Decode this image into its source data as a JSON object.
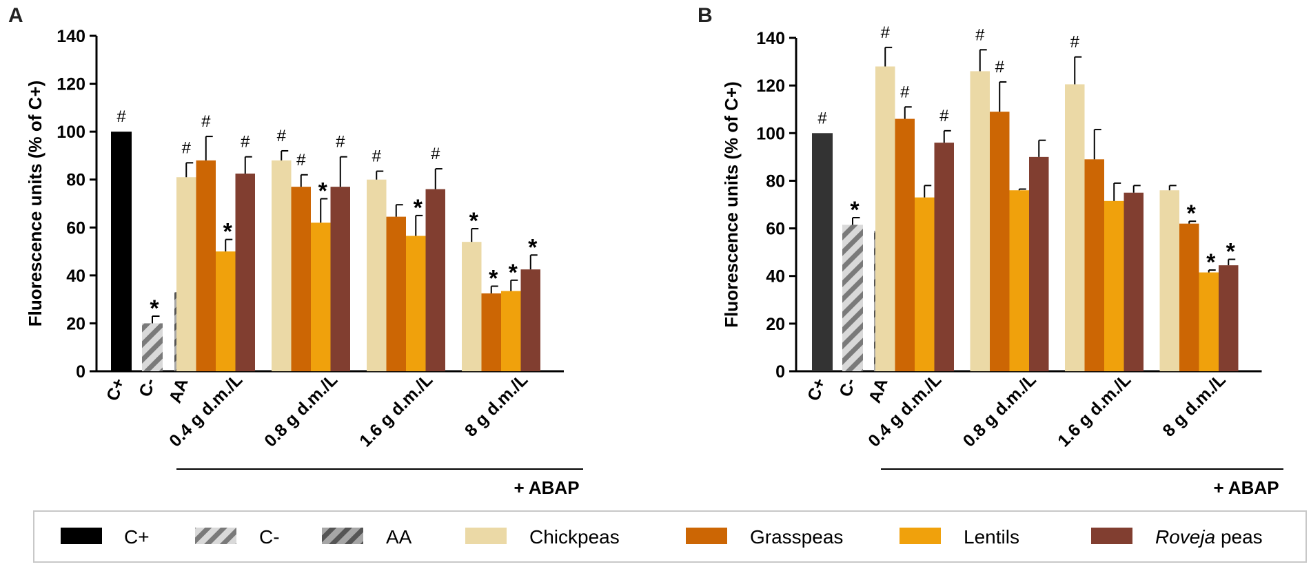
{
  "colors": {
    "c_plus_A": "#000000",
    "c_plus_B": "#333333",
    "chickpeas": "#ebd9a6",
    "grasspeas": "#cc6604",
    "lentils": "#f0a10c",
    "roveja": "#813e30",
    "c_minus_light": "#d9d9d9",
    "c_minus_stripe": "#7a7a7a",
    "aa_light": "#a6a6a6",
    "aa_stripe": "#555555"
  },
  "chart_data": [
    {
      "panel": "A",
      "type": "bar",
      "ylabel": "Fluorescence units (% of C+)",
      "ylim": [
        0,
        140
      ],
      "yticks": [
        "0",
        "20",
        "40",
        "60",
        "80",
        "100",
        "120",
        "140"
      ],
      "controls": [
        {
          "label": "C+",
          "value": 100,
          "err": 0,
          "mark": "#",
          "style": "solid"
        },
        {
          "label": "C-",
          "value": 20,
          "err": 3,
          "mark": "*",
          "style": "stripe-light"
        },
        {
          "label": "AA",
          "value": 33,
          "err": 3,
          "mark": "*",
          "style": "stripe-dark"
        }
      ],
      "groups": [
        {
          "label": "0.4 g d.m./L",
          "values": [
            81,
            88,
            50,
            82.5
          ],
          "errs": [
            6,
            10,
            5,
            7
          ],
          "marks": [
            "#",
            "#",
            "*",
            "#"
          ]
        },
        {
          "label": "0.8 g d.m./L",
          "values": [
            88,
            77,
            62,
            77
          ],
          "errs": [
            4,
            5,
            10,
            12.5
          ],
          "marks": [
            "#",
            "#",
            "*",
            "#"
          ]
        },
        {
          "label": "1.6 g d.m./L",
          "values": [
            80,
            64.5,
            56.5,
            76
          ],
          "errs": [
            3.5,
            5,
            8.5,
            8.5
          ],
          "marks": [
            "#",
            "",
            "*",
            "#"
          ]
        },
        {
          "label": "8 g d.m./L",
          "values": [
            54,
            32.5,
            33.5,
            42.5
          ],
          "errs": [
            5.5,
            3,
            4.5,
            6
          ],
          "marks": [
            "*",
            "*",
            "*",
            "*"
          ]
        }
      ],
      "bracket_label": "+ ABAP"
    },
    {
      "panel": "B",
      "type": "bar",
      "ylabel": "Fluorescence units (% of C+)",
      "ylim": [
        0,
        140
      ],
      "yticks": [
        "0",
        "20",
        "40",
        "60",
        "80",
        "100",
        "120",
        "140"
      ],
      "controls": [
        {
          "label": "C+",
          "value": 100,
          "err": 0,
          "mark": "#",
          "style": "solid"
        },
        {
          "label": "C-",
          "value": 61.5,
          "err": 3,
          "mark": "*",
          "style": "stripe-light"
        },
        {
          "label": "AA",
          "value": 59,
          "err": 5,
          "mark": "*",
          "style": "stripe-dark"
        }
      ],
      "groups": [
        {
          "label": "0.4 g d.m./L",
          "values": [
            128,
            106,
            73,
            96
          ],
          "errs": [
            8,
            5,
            5,
            5
          ],
          "marks": [
            "#",
            "#",
            "",
            "#"
          ]
        },
        {
          "label": "0.8 g d.m./L",
          "values": [
            126,
            109,
            76,
            90
          ],
          "errs": [
            9,
            12.5,
            0.5,
            7
          ],
          "marks": [
            "#",
            "#",
            "",
            ""
          ]
        },
        {
          "label": "1.6 g d.m./L",
          "values": [
            120.5,
            89,
            71.5,
            75
          ],
          "errs": [
            11.5,
            12.5,
            7.5,
            3
          ],
          "marks": [
            "#",
            "",
            "",
            ""
          ]
        },
        {
          "label": "8 g d.m./L",
          "values": [
            76,
            62,
            41.5,
            44.5
          ],
          "errs": [
            2,
            1,
            1,
            2.5
          ],
          "marks": [
            "",
            "*",
            "*",
            "*"
          ]
        }
      ],
      "bracket_label": "+ ABAP"
    }
  ],
  "legend": [
    {
      "label": "C+",
      "style": "solid"
    },
    {
      "label": "C-",
      "style": "stripe-light"
    },
    {
      "label": "AA",
      "style": "stripe-dark"
    },
    {
      "label": "Chickpeas",
      "style": "chickpeas"
    },
    {
      "label": "Grasspeas",
      "style": "grasspeas"
    },
    {
      "label": "Lentils",
      "style": "lentils"
    },
    {
      "label_italic": "Roveja",
      "label_rest": " peas",
      "style": "roveja"
    }
  ]
}
